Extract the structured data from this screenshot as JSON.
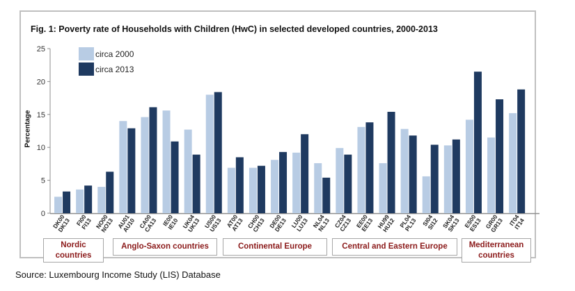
{
  "chart_data": {
    "type": "bar",
    "title": "Fig. 1: Poverty rate of Households with Children (HwC) in selected developed countries, 2000-2013",
    "xlabel": "",
    "ylabel": "Percentage",
    "ylim": [
      0,
      25
    ],
    "yticks": [
      0,
      5,
      10,
      15,
      20,
      25
    ],
    "grid": false,
    "legend_position": "top-left",
    "categories": [
      "DK00 DK13",
      "FI00 FI13",
      "NO00 NO13",
      "AU01 AU10",
      "CA00 CA13",
      "IE00 IE10",
      "UK04 UK13",
      "US00 US13",
      "AT00 AT13",
      "CH00 CH13",
      "DE00 DE13",
      "LU00 LU13",
      "NL04 NL13",
      "CZ04 CZ13",
      "EE00 EE13",
      "HU99 HU12",
      "PL04 PL13",
      "SI04 SI12",
      "SK04 SK13",
      "ES00 ES13",
      "GR00 GR13",
      "IT04 IT14"
    ],
    "category_labels": [
      [
        "DK00",
        "DK13"
      ],
      [
        "FI00",
        "FI13"
      ],
      [
        "NO00",
        "NO13"
      ],
      [
        "AU01",
        "AU10"
      ],
      [
        "CA00",
        "CA13"
      ],
      [
        "IE00",
        "IE10"
      ],
      [
        "UK04",
        "UK13"
      ],
      [
        "US00",
        "US13"
      ],
      [
        "AT00",
        "AT13"
      ],
      [
        "CH00",
        "CH13"
      ],
      [
        "DE00",
        "DE13"
      ],
      [
        "LU00",
        "LU13"
      ],
      [
        "NL04",
        "NL13"
      ],
      [
        "CZ04",
        "CZ13"
      ],
      [
        "EE00",
        "EE13"
      ],
      [
        "HU99",
        "HU12"
      ],
      [
        "PL04",
        "PL13"
      ],
      [
        "SI04",
        "SI12"
      ],
      [
        "SK04",
        "SK13"
      ],
      [
        "ES00",
        "ES13"
      ],
      [
        "GR00",
        "GR13"
      ],
      [
        "IT04",
        "IT14"
      ]
    ],
    "series": [
      {
        "name": "circa 2000",
        "color": "#b8cce4",
        "values": [
          2.5,
          3.6,
          4.0,
          14.0,
          14.6,
          15.6,
          12.7,
          18.0,
          6.9,
          6.9,
          8.1,
          9.2,
          7.6,
          9.9,
          13.1,
          7.6,
          12.8,
          5.6,
          10.3,
          14.2,
          11.5,
          15.2
        ]
      },
      {
        "name": "circa 2013",
        "color": "#1f3a60",
        "values": [
          3.3,
          4.2,
          6.3,
          12.9,
          16.1,
          10.9,
          8.9,
          18.4,
          8.5,
          7.2,
          9.3,
          12.0,
          5.4,
          8.9,
          13.8,
          15.4,
          11.8,
          10.4,
          11.2,
          21.5,
          17.3,
          18.8
        ]
      }
    ],
    "groups": [
      {
        "name": "Nordic countries",
        "line1": "Nordic",
        "line2": "countries",
        "start": 0,
        "end": 2
      },
      {
        "name": "Anglo-Saxon countries",
        "line1": "Anglo-Saxon countries",
        "line2": "",
        "start": 3,
        "end": 7
      },
      {
        "name": "Continental Europe",
        "line1": "Continental Europe",
        "line2": "",
        "start": 8,
        "end": 12
      },
      {
        "name": "Central  and Eastern Europe",
        "line1": "Central  and Eastern Europe",
        "line2": "",
        "start": 13,
        "end": 18
      },
      {
        "name": "Mediterranean countries",
        "line1": "Mediterranean",
        "line2": "countries",
        "start": 19,
        "end": 21
      }
    ],
    "group_label_color": "#8b1a1a"
  },
  "source": "Source: Luxembourg Income Study  (LIS) Database"
}
